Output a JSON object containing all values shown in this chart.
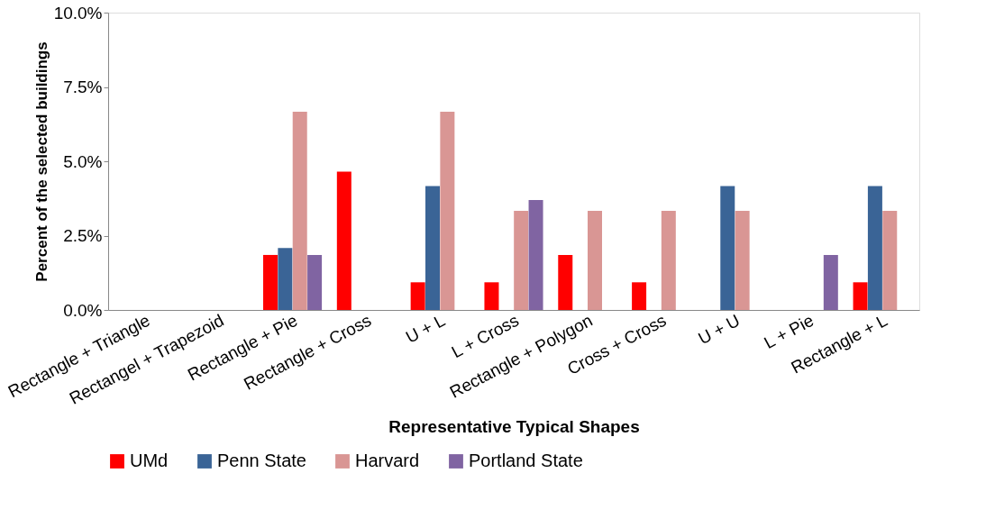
{
  "chart_data": {
    "type": "bar",
    "xlabel": "Representative Typical Shapes",
    "ylabel": "Percent of the selected buildings",
    "categories": [
      "Rectangle + Triangle",
      "Rectangel + Trapezoid",
      "Rectangle + Pie",
      "Rectangle + Cross",
      "U + L",
      "L + Cross",
      "Rectangle + Polygon",
      "Cross + Cross",
      "U + U",
      "L + Pie",
      "Rectangle + L"
    ],
    "series": [
      {
        "name": "UMd",
        "color": "#ff0000",
        "values": [
          null,
          null,
          1.85,
          4.65,
          0.93,
          0.93,
          1.85,
          0.93,
          null,
          null,
          0.93
        ]
      },
      {
        "name": "Penn State",
        "color": "#3a6496",
        "values": [
          null,
          null,
          2.08,
          null,
          4.17,
          null,
          null,
          null,
          4.17,
          null,
          4.17
        ]
      },
      {
        "name": "Harvard",
        "color": "#d99694",
        "values": [
          null,
          null,
          6.67,
          null,
          6.67,
          3.33,
          3.33,
          3.33,
          3.33,
          null,
          3.33
        ]
      },
      {
        "name": "Portland State",
        "color": "#8064a2",
        "values": [
          null,
          null,
          1.85,
          null,
          null,
          3.7,
          null,
          null,
          null,
          1.85,
          null
        ]
      }
    ],
    "ylim": [
      0,
      10
    ],
    "yticks": [
      {
        "value": 0,
        "label": "0.0%"
      },
      {
        "value": 2.5,
        "label": "2.5%"
      },
      {
        "value": 5,
        "label": "5.0%"
      },
      {
        "value": 7.5,
        "label": "7.5%"
      },
      {
        "value": 10,
        "label": "10.0%"
      }
    ],
    "grid": false,
    "legend": "bottom"
  }
}
